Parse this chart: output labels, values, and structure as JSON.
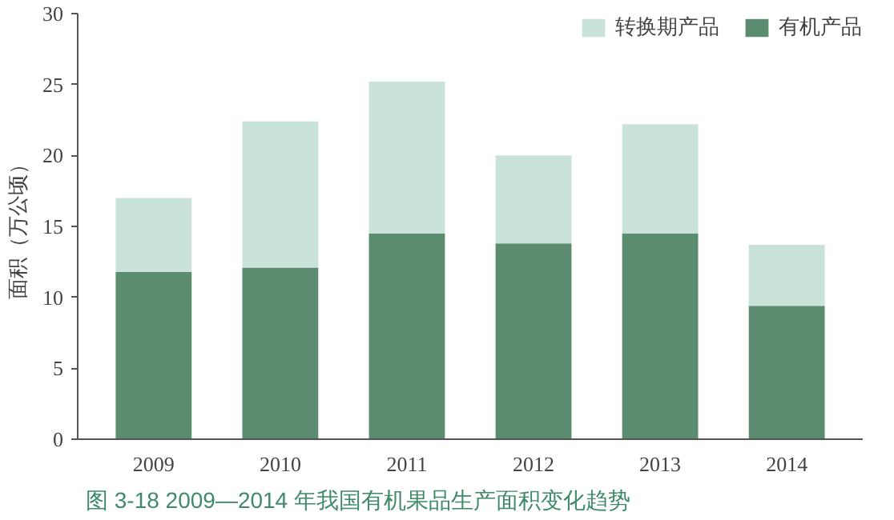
{
  "chart_data": {
    "type": "bar",
    "stacked": true,
    "ylabel": "面积（万公顷）",
    "categories": [
      "2009",
      "2010",
      "2011",
      "2012",
      "2013",
      "2014"
    ],
    "series": [
      {
        "name": "有机产品",
        "color": "#5b8c6f",
        "values": [
          11.8,
          12.1,
          14.5,
          13.8,
          14.5,
          9.4
        ]
      },
      {
        "name": "转换期产品",
        "color": "#c9e2da",
        "values": [
          5.2,
          10.3,
          10.7,
          6.2,
          7.7,
          4.3
        ]
      }
    ],
    "ylim": [
      0,
      30
    ],
    "yticks": [
      0,
      5,
      10,
      15,
      20,
      25,
      30
    ],
    "grid": false,
    "legend": "top right",
    "annotations": [
      "图 3-18    2009—2014 年我国有机果品生产面积变化趋势"
    ]
  }
}
